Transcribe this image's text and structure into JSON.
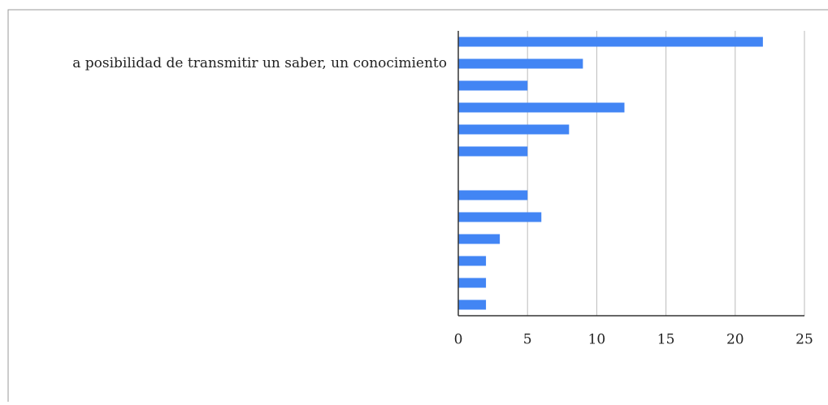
{
  "chart_data": {
    "type": "bar",
    "orientation": "horizontal",
    "categories": [
      null,
      "a posibilidad de transmitir un saber, un conocimiento",
      null,
      null,
      null,
      null,
      null,
      null,
      null,
      null,
      null,
      null,
      null
    ],
    "values": [
      22,
      9,
      5,
      12,
      8,
      5,
      0,
      5,
      6,
      3,
      2,
      2,
      2
    ],
    "color": "#4285f4",
    "xlim": [
      0,
      25
    ],
    "xticks": [
      0,
      5,
      10,
      15,
      20,
      25
    ],
    "grid": true
  }
}
